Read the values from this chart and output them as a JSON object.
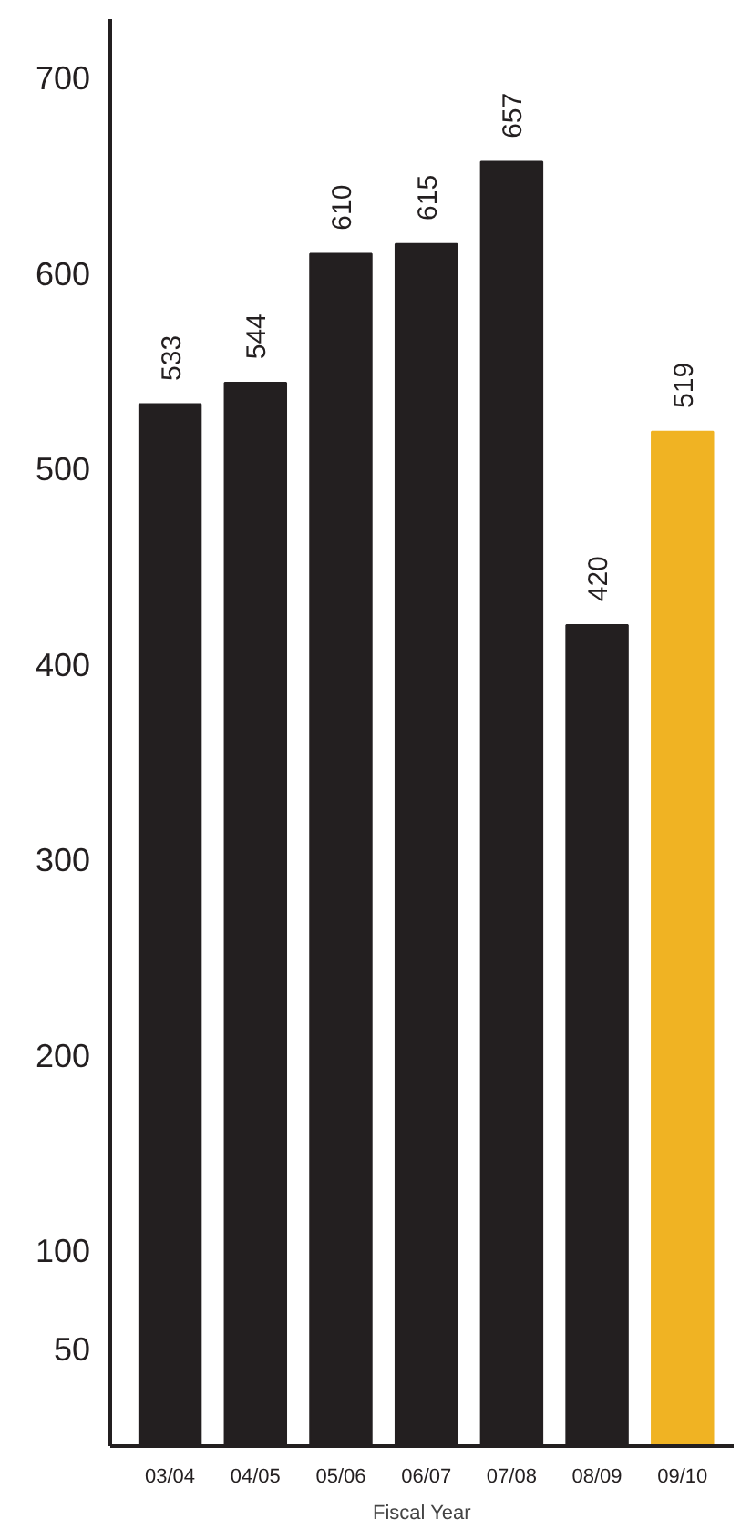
{
  "chart_data": {
    "type": "bar",
    "xlabel": "Fiscal Year",
    "categories": [
      "03/04",
      "04/05",
      "05/06",
      "06/07",
      "07/08",
      "08/09",
      "09/10"
    ],
    "values": [
      533,
      544,
      610,
      615,
      657,
      420,
      519
    ],
    "colors": [
      "#231f20",
      "#231f20",
      "#231f20",
      "#231f20",
      "#231f20",
      "#231f20",
      "#f0b323"
    ],
    "ylim": [
      0,
      730
    ],
    "yticks": [
      50,
      100,
      200,
      300,
      400,
      500,
      600,
      700
    ],
    "data_labels": true,
    "grid": false
  }
}
